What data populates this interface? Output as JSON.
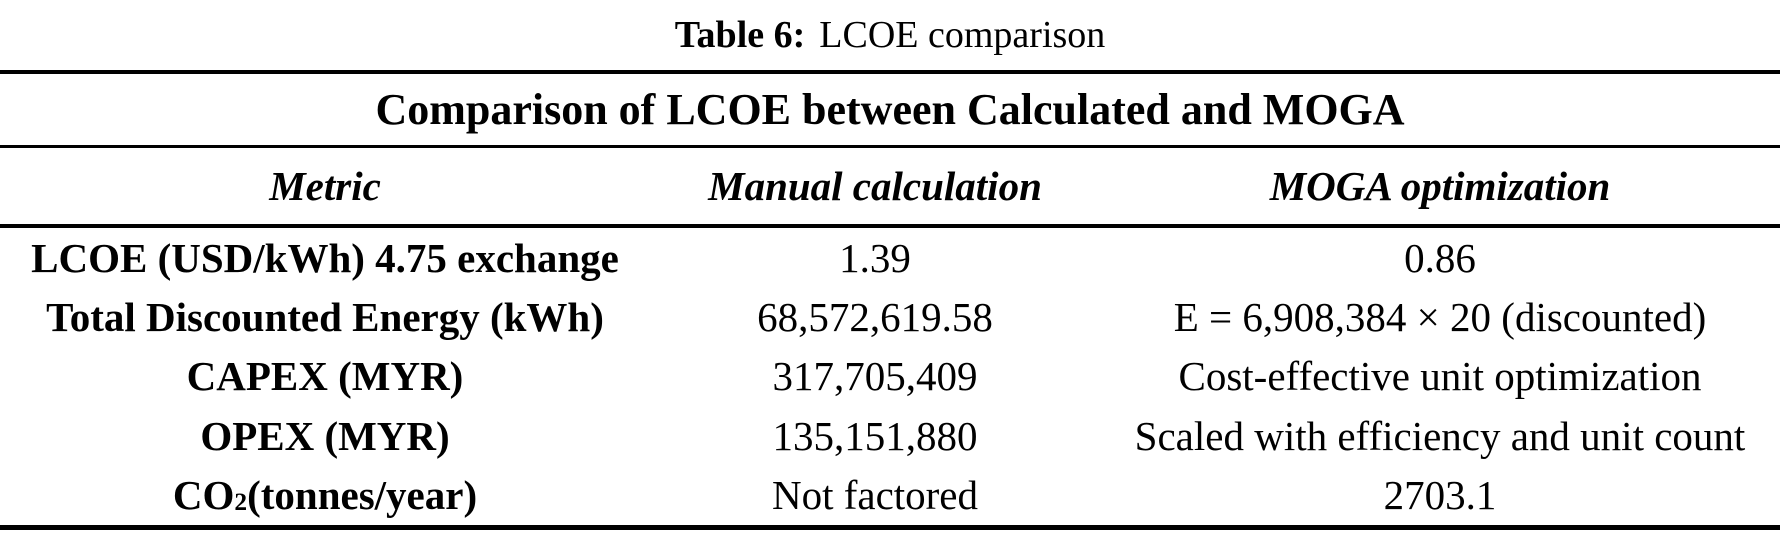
{
  "colors": {
    "text": "#000000",
    "background": "#ffffff",
    "rules": "#000000"
  },
  "caption": {
    "label": "Table 6:",
    "title": "LCOE comparison"
  },
  "table": {
    "title": "Comparison of LCOE between Calculated and MOGA",
    "columns": [
      "Metric",
      "Manual calculation",
      "MOGA optimization"
    ],
    "rows": [
      {
        "metric": "LCOE (USD/kWh) 4.75 exchange",
        "manual": "1.39",
        "moga": "0.86"
      },
      {
        "metric": "Total Discounted Energy (kWh)",
        "manual": "68,572,619.58",
        "moga": "E = 6,908,384 × 20 (discounted)"
      },
      {
        "metric": "CAPEX (MYR)",
        "manual": "317,705,409",
        "moga": "Cost-effective unit optimization"
      },
      {
        "metric": "OPEX (MYR)",
        "manual": "135,151,880",
        "moga": "Scaled with efficiency and unit count"
      },
      {
        "metric_base": "CO",
        "metric_sub": "2",
        "metric_rest": "(tonnes/year)",
        "manual": "Not factored",
        "moga": "2703.1"
      }
    ]
  }
}
